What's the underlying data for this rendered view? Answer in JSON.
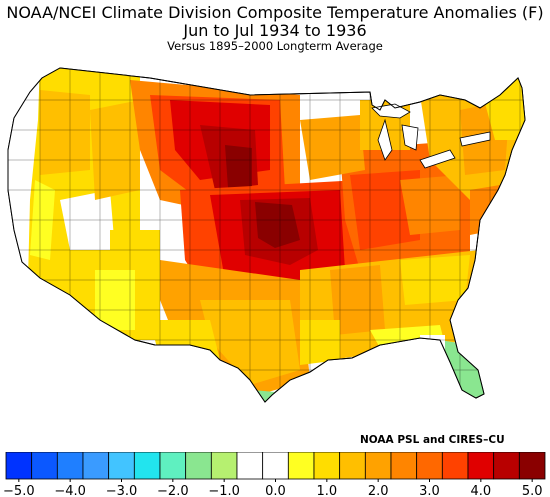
{
  "title": {
    "line1": "NOAA/NCEI Climate Division Composite Temperature Anomalies (F)",
    "line2": "Jun to Jul 1934 to 1936",
    "line3": "Versus 1895–2000 Longterm Average"
  },
  "credit": "NOAA PSL and CIRES–CU",
  "colorbar": {
    "colors": [
      "#0033ff",
      "#0b58ff",
      "#1f7fff",
      "#3a9bff",
      "#42c4ff",
      "#22e4ee",
      "#5ff0c0",
      "#8ae690",
      "#b6f070",
      "#ffffff",
      "#ffffff",
      "#ffff22",
      "#ffdd00",
      "#ffbf00",
      "#ffa200",
      "#ff8500",
      "#ff6800",
      "#ff4200",
      "#e00000",
      "#b80000",
      "#8a0000"
    ],
    "ticks": [
      {
        "value": -5.0,
        "label": "−5.0"
      },
      {
        "value": -4.0,
        "label": "−4.0"
      },
      {
        "value": -3.0,
        "label": "−3.0"
      },
      {
        "value": -2.0,
        "label": "−2.0"
      },
      {
        "value": -1.0,
        "label": "−1.0"
      },
      {
        "value": 0.0,
        "label": "0.0"
      },
      {
        "value": 1.0,
        "label": "1.0"
      },
      {
        "value": 2.0,
        "label": "2.0"
      },
      {
        "value": 3.0,
        "label": "3.0"
      },
      {
        "value": 4.0,
        "label": "4.0"
      },
      {
        "value": 5.0,
        "label": "5.0"
      }
    ],
    "range": [
      -5.0,
      5.0
    ]
  }
}
